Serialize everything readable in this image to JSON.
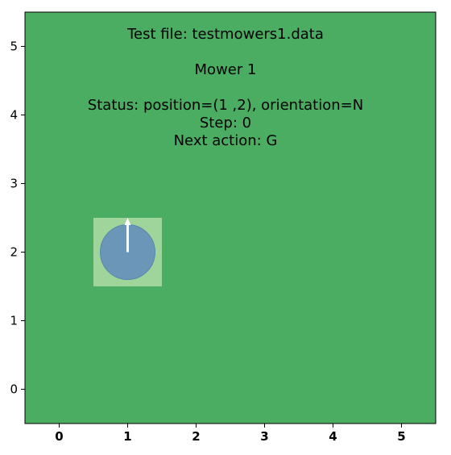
{
  "chart_data": {
    "type": "scatter",
    "title": "",
    "xlabel": "",
    "ylabel": "",
    "xlim": [
      -0.5,
      5.5
    ],
    "ylim": [
      -0.5,
      5.5
    ],
    "x_ticks": [
      "0",
      "1",
      "2",
      "3",
      "4",
      "5"
    ],
    "y_ticks": [
      "0",
      "1",
      "2",
      "3",
      "4",
      "5"
    ],
    "grid": false,
    "lawn_color": "#4aad61",
    "cell_highlight_color": "#9fd49a",
    "mower_color": "#6b96b8",
    "arrow_color": "#ffffff",
    "annotation_lines": [
      "Test file: testmowers1.data",
      "",
      "Mower 1",
      "",
      "Status: position=(1 ,2), orientation=N",
      "Step: 0",
      "Next action: G"
    ],
    "mowers": [
      {
        "name": "Mower 1",
        "x": 1,
        "y": 2,
        "orientation": "N",
        "step": 0,
        "next_action": "G"
      }
    ]
  }
}
